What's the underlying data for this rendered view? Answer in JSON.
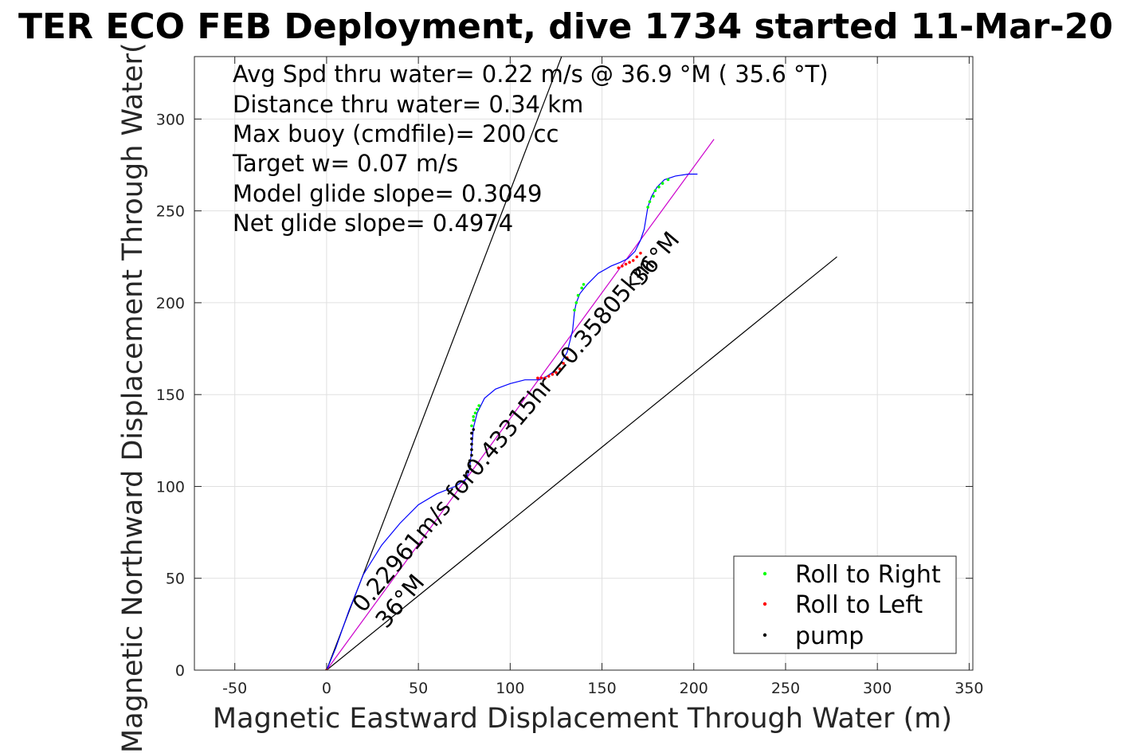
{
  "chart_data": {
    "type": "line",
    "title": "TER ECO FEB Deployment, dive 1734 started 11-Mar-20",
    "xlabel": "Magnetic Eastward Displacement Through Water (m)",
    "ylabel": "Magnetic Northward Displacement Through Water(",
    "xlim": [
      -72,
      352
    ],
    "ylim": [
      0,
      334
    ],
    "xticks": [
      -50,
      0,
      50,
      100,
      150,
      200,
      250,
      300,
      350
    ],
    "yticks": [
      0,
      50,
      100,
      150,
      200,
      250,
      300
    ],
    "xtick_labels": [
      "-50",
      "0",
      "50",
      "100",
      "150",
      "200",
      "250",
      "300",
      "350"
    ],
    "ytick_labels": [
      "0",
      "50",
      "100",
      "150",
      "200",
      "250",
      "300"
    ],
    "grid": true,
    "stats_lines": [
      "Avg Spd thru water=  0.22 m/s @  36.9 °M ( 35.6 °T)",
      "Distance thru water=  0.34 km",
      "Max buoy (cmdfile)= 200 cc",
      "Target w= 0.07 m/s",
      "Model glide slope= 0.3049",
      "Net glide slope= 0.4974"
    ],
    "annotations": [
      {
        "text": "0.22961m/s for0.43315hr =0.35805km",
        "x": 20,
        "y": 30,
        "rotation_deg": -50
      },
      {
        "text": "36°M",
        "x": 30,
        "y": 22,
        "rotation_deg": -50
      },
      {
        "text": "36°M",
        "x": 170,
        "y": 210,
        "rotation_deg": -50
      }
    ],
    "reference_lines": [
      {
        "name": "wedge-left",
        "x": [
          0,
          128
        ],
        "y": [
          0,
          334
        ],
        "color": "#000000"
      },
      {
        "name": "wedge-right",
        "x": [
          0,
          278
        ],
        "y": [
          0,
          225
        ],
        "color": "#000000"
      },
      {
        "name": "net-track",
        "x": [
          0,
          211
        ],
        "y": [
          0,
          289
        ],
        "color": "#cc00cc"
      }
    ],
    "series": [
      {
        "name": "",
        "color": "#0000ff",
        "x": [
          0,
          5,
          12,
          20,
          30,
          40,
          50,
          60,
          70,
          76,
          78,
          79,
          80,
          82,
          86,
          92,
          100,
          108,
          113,
          116,
          118,
          120,
          123,
          127,
          131,
          134,
          135,
          136,
          138,
          142,
          148,
          155,
          160,
          164,
          168,
          171,
          173,
          174,
          175,
          177,
          180,
          184,
          190,
          197,
          202
        ],
        "y": [
          0,
          12,
          32,
          52,
          68,
          80,
          90,
          96,
          100,
          104,
          110,
          120,
          132,
          140,
          148,
          153,
          156,
          158,
          158,
          158,
          159,
          160,
          162,
          166,
          173,
          185,
          195,
          200,
          205,
          210,
          216,
          220,
          222,
          224,
          228,
          234,
          240,
          246,
          252,
          258,
          263,
          267,
          269,
          270,
          270
        ]
      }
    ],
    "marker_series": [
      {
        "name": "Roll to Right",
        "color": "#00ff00",
        "x": [
          0,
          79,
          80,
          80,
          81,
          82,
          83,
          135,
          136,
          137,
          139,
          140,
          175,
          176,
          178,
          179,
          181,
          183,
          186
        ],
        "y": [
          0,
          133,
          136,
          138,
          140,
          142,
          144,
          196,
          200,
          204,
          208,
          210,
          252,
          255,
          258,
          261,
          263,
          265,
          267
        ]
      },
      {
        "name": "Roll to Left",
        "color": "#ff0000",
        "x": [
          0,
          115,
          117,
          119,
          121,
          123,
          125,
          127,
          129,
          131,
          159,
          161,
          163,
          165,
          167,
          169,
          171
        ],
        "y": [
          0,
          159,
          159,
          159,
          160,
          161,
          162,
          164,
          167,
          170,
          219,
          220,
          221,
          222,
          223,
          225,
          227
        ]
      },
      {
        "name": "pump",
        "color": "#000000",
        "x": [
          75,
          76,
          77,
          78,
          78,
          79,
          79,
          79,
          79,
          79,
          80
        ],
        "y": [
          102,
          105,
          108,
          111,
          114,
          117,
          120,
          123,
          126,
          129,
          131
        ]
      }
    ],
    "legend": {
      "position": "bottom-right",
      "entries": [
        {
          "label": "Roll to Right",
          "color": "#00ff00"
        },
        {
          "label": "Roll to Left",
          "color": "#ff0000"
        },
        {
          "label": "pump",
          "color": "#000000"
        }
      ]
    }
  }
}
